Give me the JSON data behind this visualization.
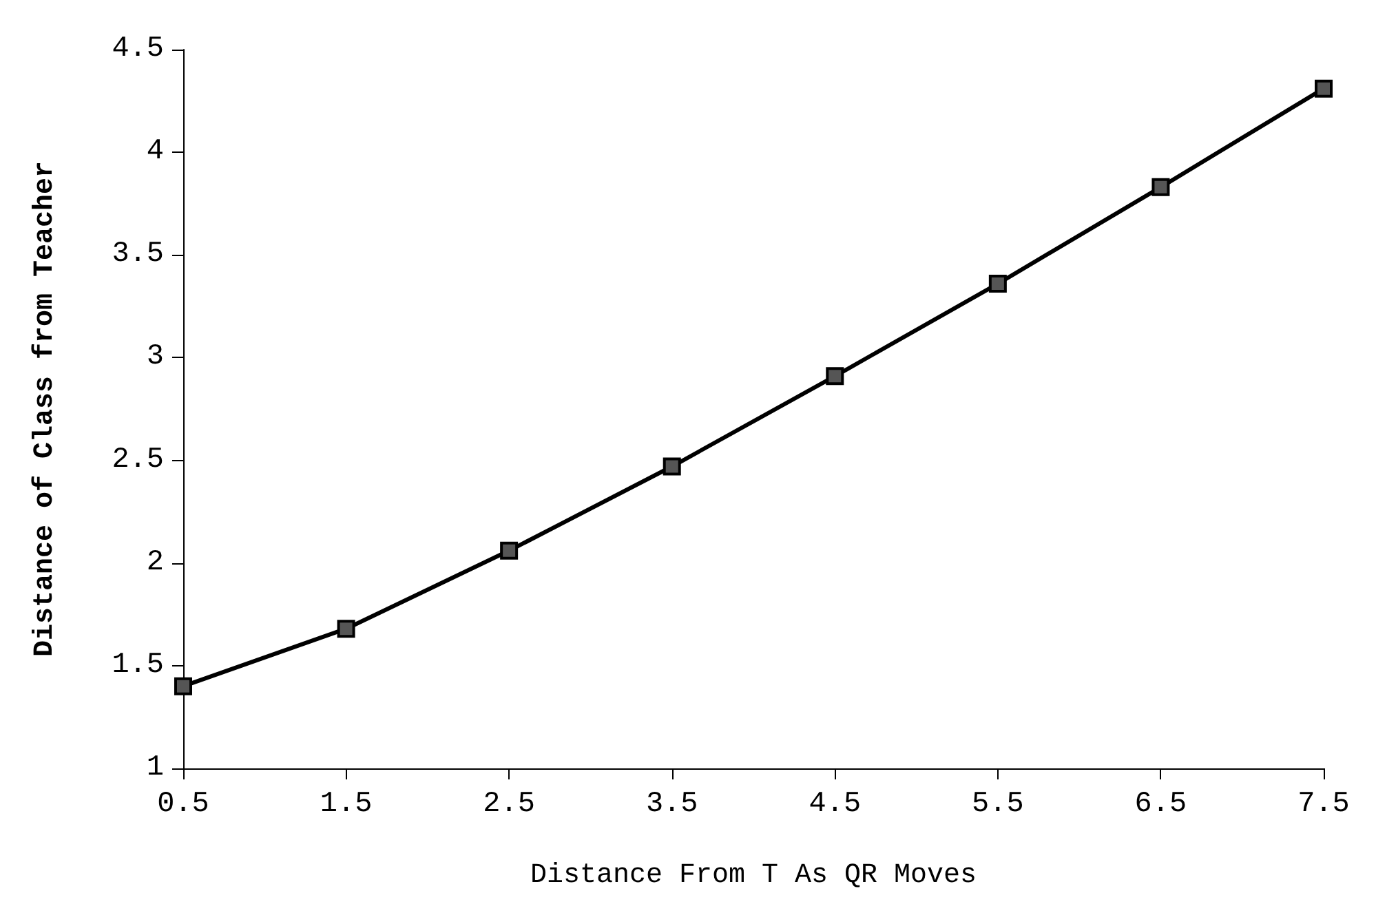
{
  "chart_data": {
    "type": "line",
    "xlabel": "Distance From T As QR Moves",
    "ylabel": "Distance of Class from Teacher",
    "x": [
      0.5,
      1.5,
      2.5,
      3.5,
      4.5,
      5.5,
      6.5,
      7.5
    ],
    "series": [
      {
        "color": "#000000",
        "values": [
          1.4,
          1.68,
          2.06,
          2.47,
          2.91,
          3.36,
          3.83,
          4.31
        ]
      }
    ],
    "xlim": [
      0.5,
      7.5
    ],
    "xticks": [
      0.5,
      1.5,
      2.5,
      3.5,
      4.5,
      5.5,
      6.5,
      7.5
    ],
    "ylim": [
      1,
      4.5
    ],
    "yticks": [
      1,
      1.5,
      2,
      2.5,
      3,
      3.5,
      4,
      4.5
    ],
    "grid": false,
    "marker": "square",
    "line_style": "solid"
  }
}
